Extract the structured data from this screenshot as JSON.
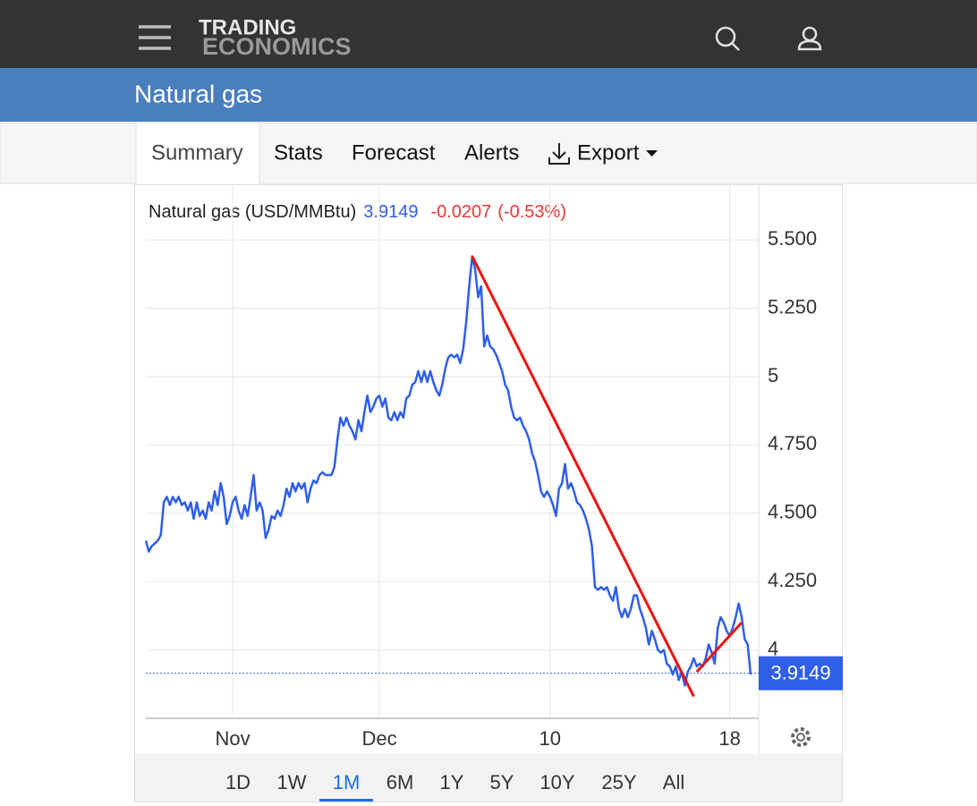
{
  "header": {
    "logo_top": "TRADING",
    "logo_bottom": "ECONOMICS"
  },
  "title": "Natural gas",
  "tabs": [
    "Summary",
    "Stats",
    "Forecast",
    "Alerts",
    "Export"
  ],
  "chart_data": {
    "type": "line",
    "title": "Natural gas (USD/MMBtu)",
    "last": 3.9149,
    "change": -0.0207,
    "change_pct": "(-0.53%)",
    "color": "#2f5fe8",
    "values": [
      4.4,
      4.36,
      4.38,
      4.39,
      4.4,
      4.42,
      4.54,
      4.56,
      4.53,
      4.56,
      4.54,
      4.56,
      4.53,
      4.54,
      4.51,
      4.54,
      4.48,
      4.54,
      4.49,
      4.51,
      4.48,
      4.54,
      4.51,
      4.58,
      4.53,
      4.61,
      4.56,
      4.46,
      4.49,
      4.54,
      4.56,
      4.51,
      4.48,
      4.53,
      4.49,
      4.56,
      4.64,
      4.51,
      4.54,
      4.51,
      4.41,
      4.44,
      4.49,
      4.48,
      4.51,
      4.49,
      4.53,
      4.59,
      4.56,
      4.61,
      4.58,
      4.61,
      4.59,
      4.61,
      4.54,
      4.59,
      4.62,
      4.61,
      4.64,
      4.65,
      4.64,
      4.64,
      4.64,
      4.67,
      4.77,
      4.85,
      4.82,
      4.85,
      4.82,
      4.8,
      4.77,
      4.84,
      4.8,
      4.87,
      4.93,
      4.87,
      4.89,
      4.92,
      4.93,
      4.89,
      4.92,
      4.85,
      4.84,
      4.87,
      4.84,
      4.87,
      4.85,
      4.92,
      4.93,
      4.97,
      4.98,
      5.02,
      4.98,
      5.02,
      4.98,
      5.02,
      4.98,
      4.95,
      4.93,
      4.97,
      5.03,
      5.07,
      5.08,
      5.07,
      5.08,
      5.05,
      5.1,
      5.2,
      5.33,
      5.44,
      5.39,
      5.29,
      5.33,
      5.11,
      5.15,
      5.11,
      5.1,
      5.08,
      5.05,
      5.02,
      4.97,
      4.95,
      4.89,
      4.85,
      4.84,
      4.85,
      4.82,
      4.8,
      4.77,
      4.72,
      4.69,
      4.64,
      4.58,
      4.56,
      4.58,
      4.56,
      4.53,
      4.49,
      4.59,
      4.61,
      4.68,
      4.59,
      4.61,
      4.58,
      4.54,
      4.53,
      4.51,
      4.48,
      4.44,
      4.38,
      4.23,
      4.22,
      4.23,
      4.22,
      4.23,
      4.2,
      4.18,
      4.23,
      4.15,
      4.12,
      4.15,
      4.12,
      4.15,
      4.2,
      4.2,
      4.15,
      4.12,
      4.08,
      4.02,
      4.07,
      4.04,
      4.0,
      3.99,
      4.0,
      3.95,
      3.94,
      3.91,
      3.94,
      3.89,
      3.92,
      3.87,
      3.92,
      3.94,
      3.97,
      3.94,
      3.95,
      3.94,
      3.97,
      4.02,
      3.99,
      3.95,
      4.08,
      4.12,
      4.1,
      4.07,
      4.05,
      4.08,
      4.12,
      4.17,
      4.12,
      4.04,
      4.02,
      3.91
    ],
    "xlim": [
      0,
      202
    ],
    "xticks": [
      {
        "value": 29,
        "label": "Nov"
      },
      {
        "value": 78,
        "label": "Dec"
      },
      {
        "value": 135,
        "label": "10"
      },
      {
        "value": 195,
        "label": "18"
      }
    ],
    "ylim": [
      3.75,
      5.52
    ],
    "yticks": [
      {
        "value": 5.5,
        "label": "5.500"
      },
      {
        "value": 5.25,
        "label": "5.250"
      },
      5,
      {
        "value": 4.75,
        "label": "4.750"
      },
      {
        "value": 4.5,
        "label": "4.500"
      },
      {
        "value": 4.25,
        "label": "4.250"
      },
      4
    ],
    "grid": true,
    "trendlines": [
      {
        "color": "#ee1111",
        "x": [
          109,
          183
        ],
        "values": [
          5.44,
          3.83
        ]
      },
      {
        "color": "#ee1111",
        "x": [
          184,
          199
        ],
        "values": [
          3.92,
          4.1
        ]
      }
    ]
  },
  "ranges": [
    "1D",
    "1W",
    "1M",
    "6M",
    "1Y",
    "5Y",
    "10Y",
    "25Y",
    "All"
  ]
}
